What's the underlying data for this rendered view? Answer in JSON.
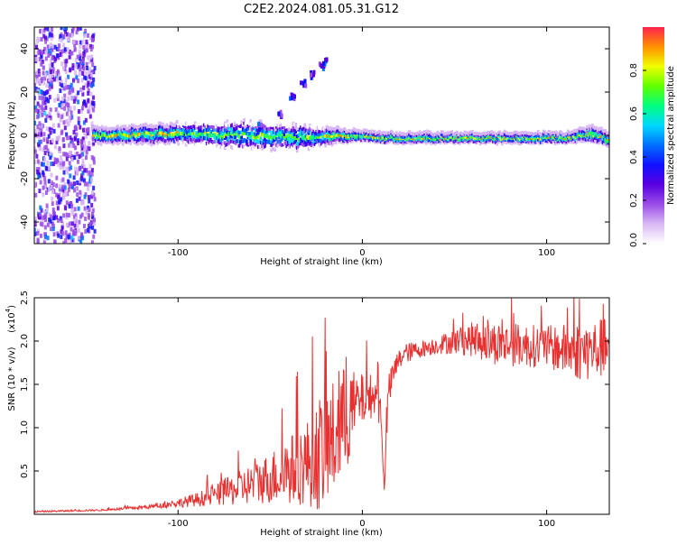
{
  "title": "C2E2.2024.081.05.31.G12",
  "colors": {
    "snr_line": "#e83030",
    "cmap": [
      "#ffffff",
      "#d9b8f5",
      "#9a4de8",
      "#5a00e0",
      "#1010ff",
      "#0070ff",
      "#00d8ff",
      "#00ff80",
      "#60ff00",
      "#f0ff00",
      "#ff9000",
      "#ff2050"
    ]
  },
  "chart_data": [
    {
      "type": "heatmap",
      "xlabel": "Height of straight line (km)",
      "ylabel": "Frequency (Hz)",
      "xlim": [
        -178,
        134
      ],
      "ylim": [
        -50,
        50
      ],
      "xticks": [
        -100,
        0,
        100
      ],
      "yticks": [
        -40,
        -20,
        0,
        20,
        40
      ],
      "grid": false,
      "description_series": [
        {
          "name": "main_band",
          "x": [
            -145,
            -100,
            -60,
            -30,
            -15,
            0,
            10,
            30,
            60,
            90,
            110,
            125,
            134
          ],
          "y": [
            0,
            1,
            0,
            -1,
            0,
            0,
            -1,
            -1,
            -1,
            -1,
            -1,
            1,
            -2
          ],
          "half_width": [
            3,
            4,
            6,
            5,
            3,
            2,
            2,
            2,
            2,
            2,
            2,
            3,
            3
          ]
        },
        {
          "name": "upper_branch",
          "x": [
            -55,
            -45,
            -38,
            -32,
            -27,
            -22,
            -20
          ],
          "y": [
            4,
            10,
            18,
            24,
            28,
            32,
            34
          ]
        }
      ],
      "colorbar": {
        "label": "Normalized spectral amplitude",
        "lim": [
          0,
          1
        ],
        "ticks": [
          "0.0",
          "0.2",
          "0.4",
          "0.6",
          "0.8"
        ],
        "tick_values": [
          0.0,
          0.2,
          0.4,
          0.6,
          0.8
        ]
      }
    },
    {
      "type": "line",
      "xlabel": "Height of straight line (km)",
      "ylabel": "SNR (10 * v/v)",
      "yscale_label": "(x10",
      "yscale_exp": "4",
      "yscale_close": ")",
      "xlim": [
        -178,
        134
      ],
      "ylim": [
        0,
        2.5
      ],
      "xticks": [
        -100,
        0,
        100
      ],
      "yticks": [
        0.5,
        1.0,
        1.5,
        2.0,
        2.5
      ],
      "ytick_labels": [
        "0.5",
        "1.0",
        "1.5",
        "2.0",
        "2.5"
      ],
      "grid": false,
      "series": [
        {
          "name": "SNR",
          "x": [
            -178,
            -160,
            -140,
            -120,
            -110,
            -100,
            -90,
            -80,
            -70,
            -60,
            -50,
            -40,
            -30,
            -22,
            -16,
            -12,
            -8,
            -4,
            0,
            6,
            10,
            12,
            14,
            18,
            22,
            30,
            40,
            50,
            60,
            70,
            80,
            90,
            100,
            110,
            120,
            126,
            130,
            134
          ],
          "y": [
            0.03,
            0.04,
            0.05,
            0.08,
            0.1,
            0.13,
            0.17,
            0.22,
            0.28,
            0.35,
            0.42,
            0.5,
            0.6,
            0.72,
            0.85,
            1.0,
            1.12,
            1.25,
            1.32,
            1.38,
            1.2,
            0.3,
            1.4,
            1.7,
            1.85,
            1.9,
            1.95,
            2.0,
            2.02,
            1.98,
            1.96,
            1.95,
            1.93,
            1.9,
            1.88,
            1.9,
            1.92,
            1.95
          ],
          "noise": [
            0.01,
            0.01,
            0.01,
            0.02,
            0.03,
            0.05,
            0.08,
            0.12,
            0.18,
            0.24,
            0.3,
            0.4,
            0.5,
            0.7,
            0.7,
            0.7,
            0.6,
            0.4,
            0.3,
            0.25,
            0.2,
            0.1,
            0.2,
            0.15,
            0.12,
            0.1,
            0.1,
            0.15,
            0.2,
            0.25,
            0.25,
            0.25,
            0.25,
            0.3,
            0.35,
            0.35,
            0.35,
            0.3
          ]
        }
      ]
    }
  ]
}
